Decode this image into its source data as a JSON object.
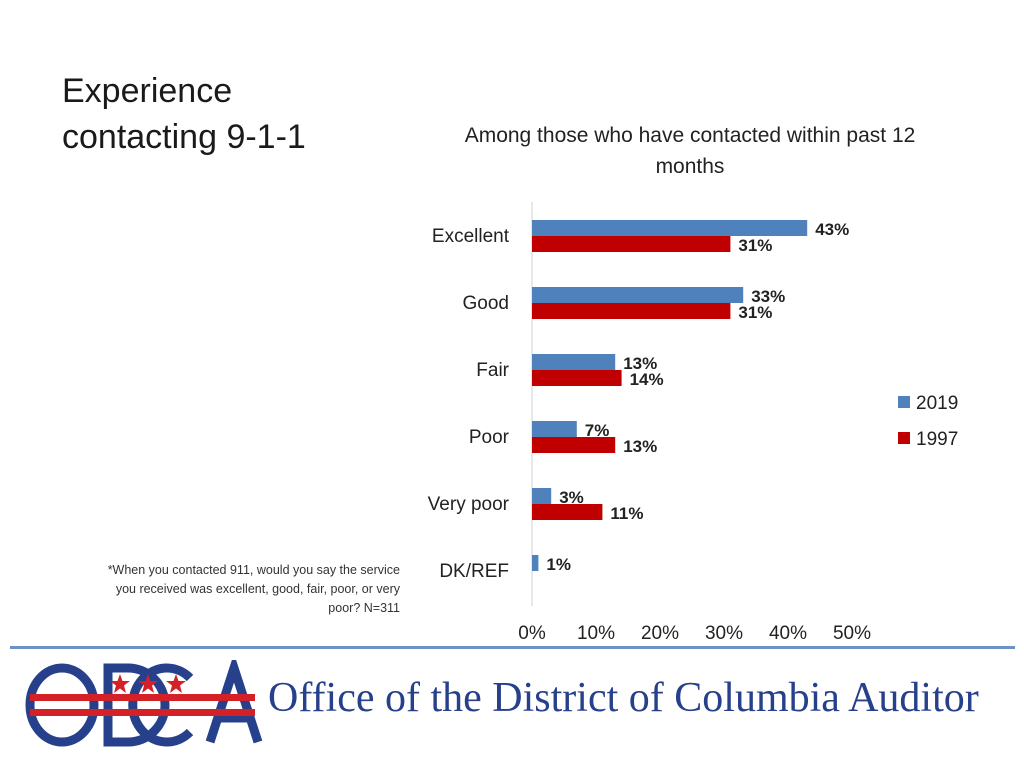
{
  "page": {
    "title": "Experience contacting 9-1-1",
    "footnote": "*When you contacted 911, would you say the service you received was excellent, good, fair, poor, or very poor? N=311"
  },
  "branding": {
    "org_name": "Office of the District of Columbia Auditor",
    "logo_text": "ODCA",
    "colors": {
      "blue": "#27408b",
      "red": "#d42027",
      "rule": "#6d93c4"
    }
  },
  "chart_data": {
    "type": "bar",
    "orientation": "horizontal",
    "title": "Among those who have contacted within past 12 months",
    "categories": [
      "Excellent",
      "Good",
      "Fair",
      "Poor",
      "Very poor",
      "DK/REF"
    ],
    "series": [
      {
        "name": "2019",
        "values": [
          43,
          33,
          13,
          7,
          3,
          1
        ],
        "labels": [
          "43%",
          "33%",
          "13%",
          "7%",
          "3%",
          "1%"
        ],
        "color": "#4f81bd"
      },
      {
        "name": "1997",
        "values": [
          31,
          31,
          14,
          13,
          11,
          null
        ],
        "labels": [
          "31%",
          "31%",
          "14%",
          "13%",
          "11%",
          ""
        ],
        "color": "#c00000"
      }
    ],
    "xlim": [
      0,
      50
    ],
    "xticks": [
      "0%",
      "10%",
      "20%",
      "30%",
      "40%",
      "50%"
    ],
    "grid": false,
    "legend": "right"
  }
}
